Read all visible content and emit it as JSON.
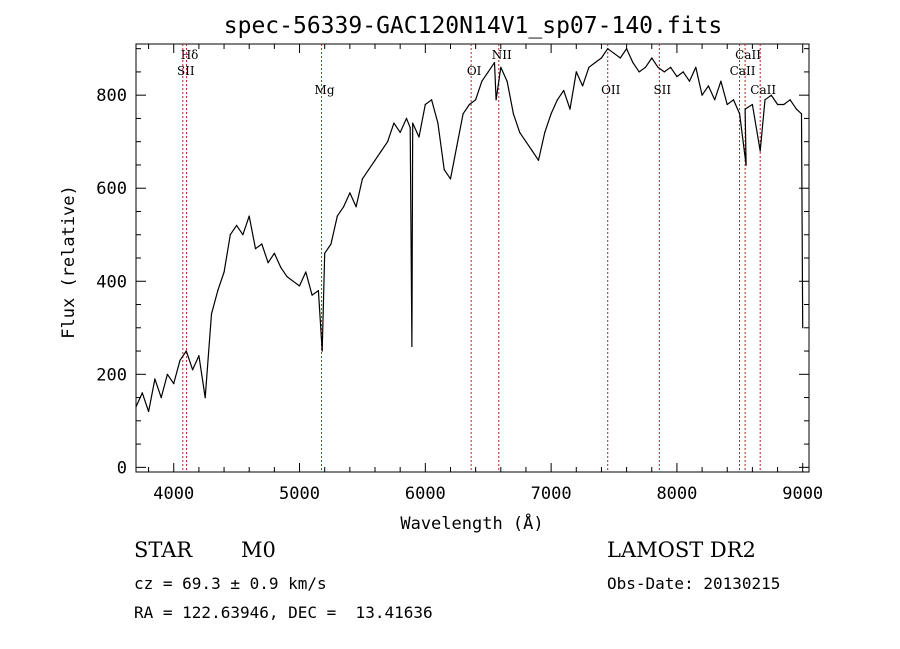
{
  "chart_data": {
    "type": "line",
    "title": "spec-56339-GAC120N14V1_sp07-140.fits",
    "xlabel": "Wavelength (Å)",
    "ylabel": "Flux (relative)",
    "xlim": [
      3700,
      9050
    ],
    "ylim": [
      -10,
      910
    ],
    "x_ticks": [
      4000,
      5000,
      6000,
      7000,
      8000,
      9000
    ],
    "y_ticks": [
      0,
      200,
      400,
      600,
      800
    ],
    "grid": false,
    "line_color": "#000000",
    "marker_color": "#b22222",
    "series": [
      {
        "x": [
          3700,
          3750,
          3800,
          3850,
          3900,
          3950,
          4000,
          4050,
          4100,
          4150,
          4200,
          4250,
          4300,
          4350,
          4400,
          4450,
          4500,
          4550,
          4600,
          4650,
          4700,
          4750,
          4800,
          4850,
          4900,
          4950,
          5000,
          5050,
          5100,
          5150,
          5180,
          5200,
          5250,
          5300,
          5350,
          5400,
          5450,
          5500,
          5550,
          5600,
          5650,
          5700,
          5750,
          5800,
          5850,
          5880,
          5893,
          5900,
          5950,
          6000,
          6050,
          6100,
          6150,
          6200,
          6250,
          6300,
          6350,
          6400,
          6450,
          6500,
          6550,
          6563,
          6600,
          6650,
          6700,
          6750,
          6800,
          6850,
          6900,
          6950,
          7000,
          7050,
          7100,
          7150,
          7200,
          7250,
          7300,
          7350,
          7400,
          7450,
          7500,
          7550,
          7600,
          7650,
          7700,
          7750,
          7800,
          7850,
          7900,
          7950,
          8000,
          8050,
          8100,
          8150,
          8200,
          8250,
          8300,
          8350,
          8400,
          8450,
          8498,
          8550,
          8542,
          8600,
          8662,
          8700,
          8750,
          8800,
          8850,
          8900,
          8950,
          8990,
          9000
        ],
        "y": [
          130,
          160,
          120,
          190,
          150,
          200,
          180,
          230,
          250,
          210,
          240,
          150,
          330,
          380,
          420,
          500,
          520,
          500,
          540,
          470,
          480,
          440,
          460,
          430,
          410,
          400,
          390,
          420,
          370,
          380,
          250,
          460,
          480,
          540,
          560,
          590,
          560,
          620,
          640,
          660,
          680,
          700,
          740,
          720,
          750,
          730,
          260,
          740,
          710,
          780,
          790,
          740,
          640,
          620,
          690,
          760,
          780,
          790,
          830,
          850,
          870,
          790,
          860,
          830,
          760,
          720,
          700,
          680,
          660,
          720,
          760,
          790,
          810,
          770,
          850,
          820,
          860,
          870,
          880,
          900,
          890,
          880,
          900,
          870,
          850,
          860,
          880,
          860,
          850,
          860,
          840,
          850,
          830,
          860,
          800,
          820,
          790,
          830,
          780,
          790,
          760,
          650,
          770,
          780,
          680,
          790,
          800,
          780,
          780,
          790,
          770,
          760,
          300
        ]
      }
    ],
    "line_markers": [
      {
        "label": "Hδ",
        "x": 4102,
        "label_row": 0
      },
      {
        "label": "SII",
        "x": 4072,
        "label_row": 1
      },
      {
        "label": "Mg",
        "x": 5175,
        "label_row": 2
      },
      {
        "label": "OI",
        "x": 6364,
        "label_row": 1
      },
      {
        "label": "NII",
        "x": 6584,
        "label_row": 0
      },
      {
        "label": "OII",
        "x": 7450,
        "label_row": 2
      },
      {
        "label": "SII",
        "x": 7860,
        "label_row": 2
      },
      {
        "label": "CaII",
        "x": 8498,
        "label_row": 1
      },
      {
        "label": "CaII",
        "x": 8542,
        "label_row": 0
      },
      {
        "label": "CaII",
        "x": 8662,
        "label_row": 2
      }
    ]
  },
  "annotations": {
    "object_class": "STAR",
    "subclass": "M0",
    "survey": "LAMOST DR2",
    "redshift": "cz = 69.3 ± 0.9 km/s",
    "obs_date": "Obs-Date: 20130215",
    "coords": "RA = 122.63946, DEC =  13.41636"
  }
}
